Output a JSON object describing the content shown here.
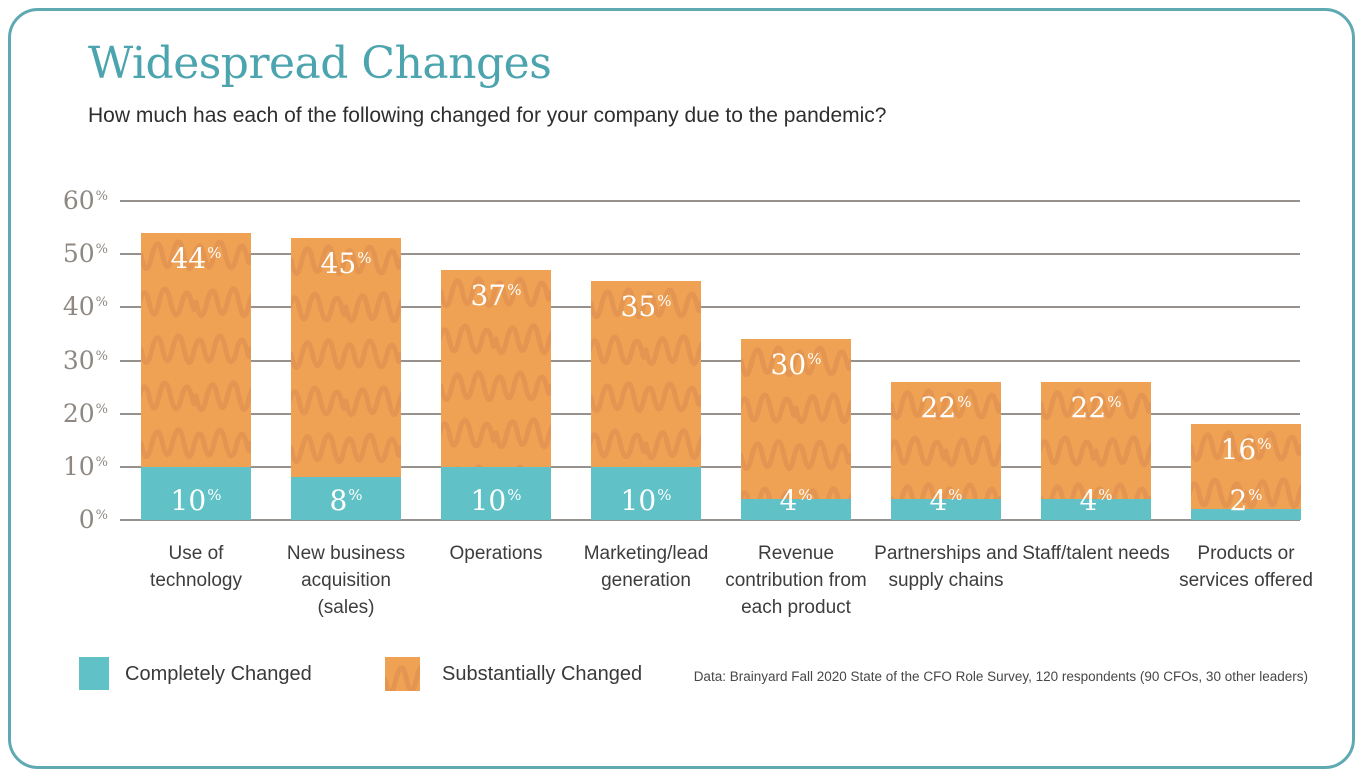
{
  "chart_data": {
    "type": "bar",
    "stacked": true,
    "title": "Widespread Changes",
    "subtitle": "How much has each of the following changed for your company due to the pandemic?",
    "categories": [
      "Use of technology",
      "New business acquisition (sales)",
      "Operations",
      "Marketing/lead generation",
      "Revenue contribution from each product",
      "Partnerships and supply chains",
      "Staff/talent needs",
      "Products or services offered"
    ],
    "series": [
      {
        "name": "Completely Changed",
        "color": "#60C1C7",
        "values": [
          10,
          8,
          10,
          10,
          4,
          4,
          4,
          2
        ]
      },
      {
        "name": "Substantially Changed",
        "color": "#F0A254",
        "values": [
          44,
          45,
          37,
          35,
          30,
          22,
          22,
          16
        ]
      }
    ],
    "ylim": [
      0,
      60
    ],
    "yticks": [
      0,
      10,
      20,
      30,
      40,
      50,
      60
    ],
    "tick_suffix": "%",
    "value_suffix": "%",
    "grid": true,
    "legend_position": "bottom-left"
  },
  "source": {
    "text": "Data: Brainyard Fall 2020 State of the CFO Role Survey, 120 respondents (90 CFOs, 30 other leaders)"
  },
  "colors": {
    "bar_teal": "#60C1C7",
    "bar_orange": "#F0A254",
    "squiggle_stroke": "#E29350",
    "title_teal": "#4BA4AE",
    "border_teal": "#5FA9B3",
    "gridline": "#96918D",
    "axis_text": "#8F8882"
  }
}
